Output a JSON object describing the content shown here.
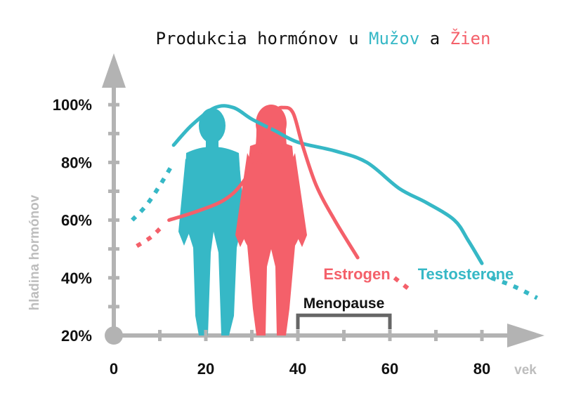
{
  "title": {
    "prefix": "Produkcia hormónov u ",
    "men": "Mužov",
    "middle": " a ",
    "women": "Žien"
  },
  "colors": {
    "men": "#36b8c6",
    "women": "#f4606a",
    "axis": "#b3b3b3",
    "bracket": "#666666",
    "text": "#111111"
  },
  "chart_data": {
    "type": "line",
    "xlabel": "vek",
    "ylabel": "hladina hormónov",
    "xlim": [
      0,
      90
    ],
    "ylim": [
      20,
      105
    ],
    "x_ticks": [
      0,
      20,
      40,
      60,
      80
    ],
    "y_ticks": [
      20,
      40,
      60,
      80,
      100
    ],
    "y_tick_labels": [
      "20%",
      "40%",
      "60%",
      "80%",
      "100%"
    ],
    "grid": false,
    "series": [
      {
        "name": "Testosterone",
        "color": "#36b8c6",
        "dotted_before": [
          [
            4,
            60
          ],
          [
            7,
            65
          ],
          [
            10,
            72
          ],
          [
            13,
            80
          ]
        ],
        "solid": [
          [
            13,
            86
          ],
          [
            17,
            93
          ],
          [
            22,
            99
          ],
          [
            26,
            99
          ],
          [
            30,
            95
          ],
          [
            35,
            91
          ],
          [
            40,
            87
          ],
          [
            48,
            84
          ],
          [
            55,
            80
          ],
          [
            62,
            71
          ],
          [
            68,
            66
          ],
          [
            74,
            60
          ],
          [
            77,
            53
          ],
          [
            80,
            45
          ]
        ],
        "dotted_after": [
          [
            82,
            40
          ],
          [
            87,
            37
          ],
          [
            92,
            33
          ]
        ]
      },
      {
        "name": "Estrogen",
        "color": "#f4606a",
        "dotted_before": [
          [
            5,
            51
          ],
          [
            8,
            54
          ],
          [
            10,
            57
          ]
        ],
        "solid": [
          [
            12,
            60
          ],
          [
            18,
            63
          ],
          [
            24,
            67
          ],
          [
            28,
            73
          ],
          [
            32,
            84
          ],
          [
            35,
            97
          ],
          [
            37,
            99
          ],
          [
            39,
            97
          ],
          [
            41,
            86
          ],
          [
            44,
            72
          ],
          [
            48,
            60
          ],
          [
            53,
            47
          ]
        ],
        "dotted_after": [
          [
            61,
            40
          ],
          [
            65,
            35
          ]
        ]
      }
    ],
    "annotations": [
      {
        "label": "Menopause",
        "x_range": [
          40,
          60
        ],
        "y": 27
      }
    ]
  }
}
